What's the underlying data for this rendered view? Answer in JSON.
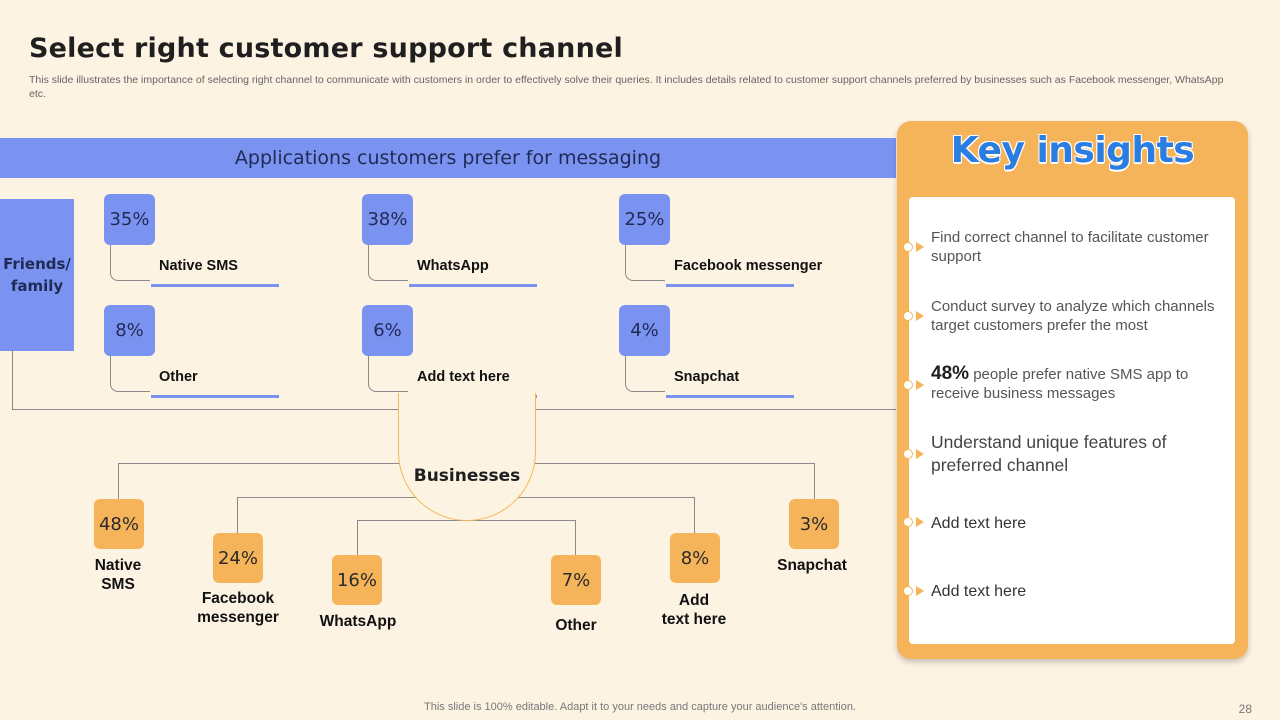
{
  "slide": {
    "title": "Select right customer support channel",
    "subtitle": "This slide illustrates the importance of selecting right channel to communicate with customers in order to effectively  solve their queries. It includes details related to customer support channels preferred by businesses such as Facebook messenger, WhatsApp etc.",
    "footer": "This slide is 100% editable. Adapt it to your needs and capture your audience's attention.",
    "page_number": "28"
  },
  "customers": {
    "header": "Applications customers prefer for messaging",
    "group_line1": "Friends/",
    "group_line2": "family",
    "items": [
      {
        "percent": "35%",
        "label": "Native SMS"
      },
      {
        "percent": "38%",
        "label": "WhatsApp"
      },
      {
        "percent": "25%",
        "label": "Facebook messenger"
      },
      {
        "percent": "8%",
        "label": "Other"
      },
      {
        "percent": "6%",
        "label": "Add  text here"
      },
      {
        "percent": "4%",
        "label": "Snapchat"
      }
    ]
  },
  "businesses": {
    "label": "Businesses",
    "items": [
      {
        "percent": "48%",
        "line1": "Native",
        "line2": "SMS"
      },
      {
        "percent": "24%",
        "line1": "Facebook",
        "line2": "messenger"
      },
      {
        "percent": "16%",
        "line1": "WhatsApp",
        "line2": ""
      },
      {
        "percent": "7%",
        "line1": "Other",
        "line2": ""
      },
      {
        "percent": "8%",
        "line1": "Add",
        "line2": "text here"
      },
      {
        "percent": "3%",
        "line1": "Snapchat",
        "line2": ""
      }
    ]
  },
  "insights": {
    "title": "Key insights",
    "items": [
      {
        "text": "Find correct channel to facilitate customer support"
      },
      {
        "text": "Conduct survey to analyze which channels target customers prefer the most"
      },
      {
        "highlight": "48%",
        "text": " people prefer native SMS app to receive business messages"
      },
      {
        "text": "Understand unique features of preferred channel"
      },
      {
        "text": "Add text here"
      },
      {
        "text": "Add text here"
      }
    ]
  },
  "colors": {
    "background": "#fdf3e3",
    "blue_accent": "#7b93f0",
    "orange_accent": "#f6b45a",
    "title_blue": "#2a7de1"
  }
}
